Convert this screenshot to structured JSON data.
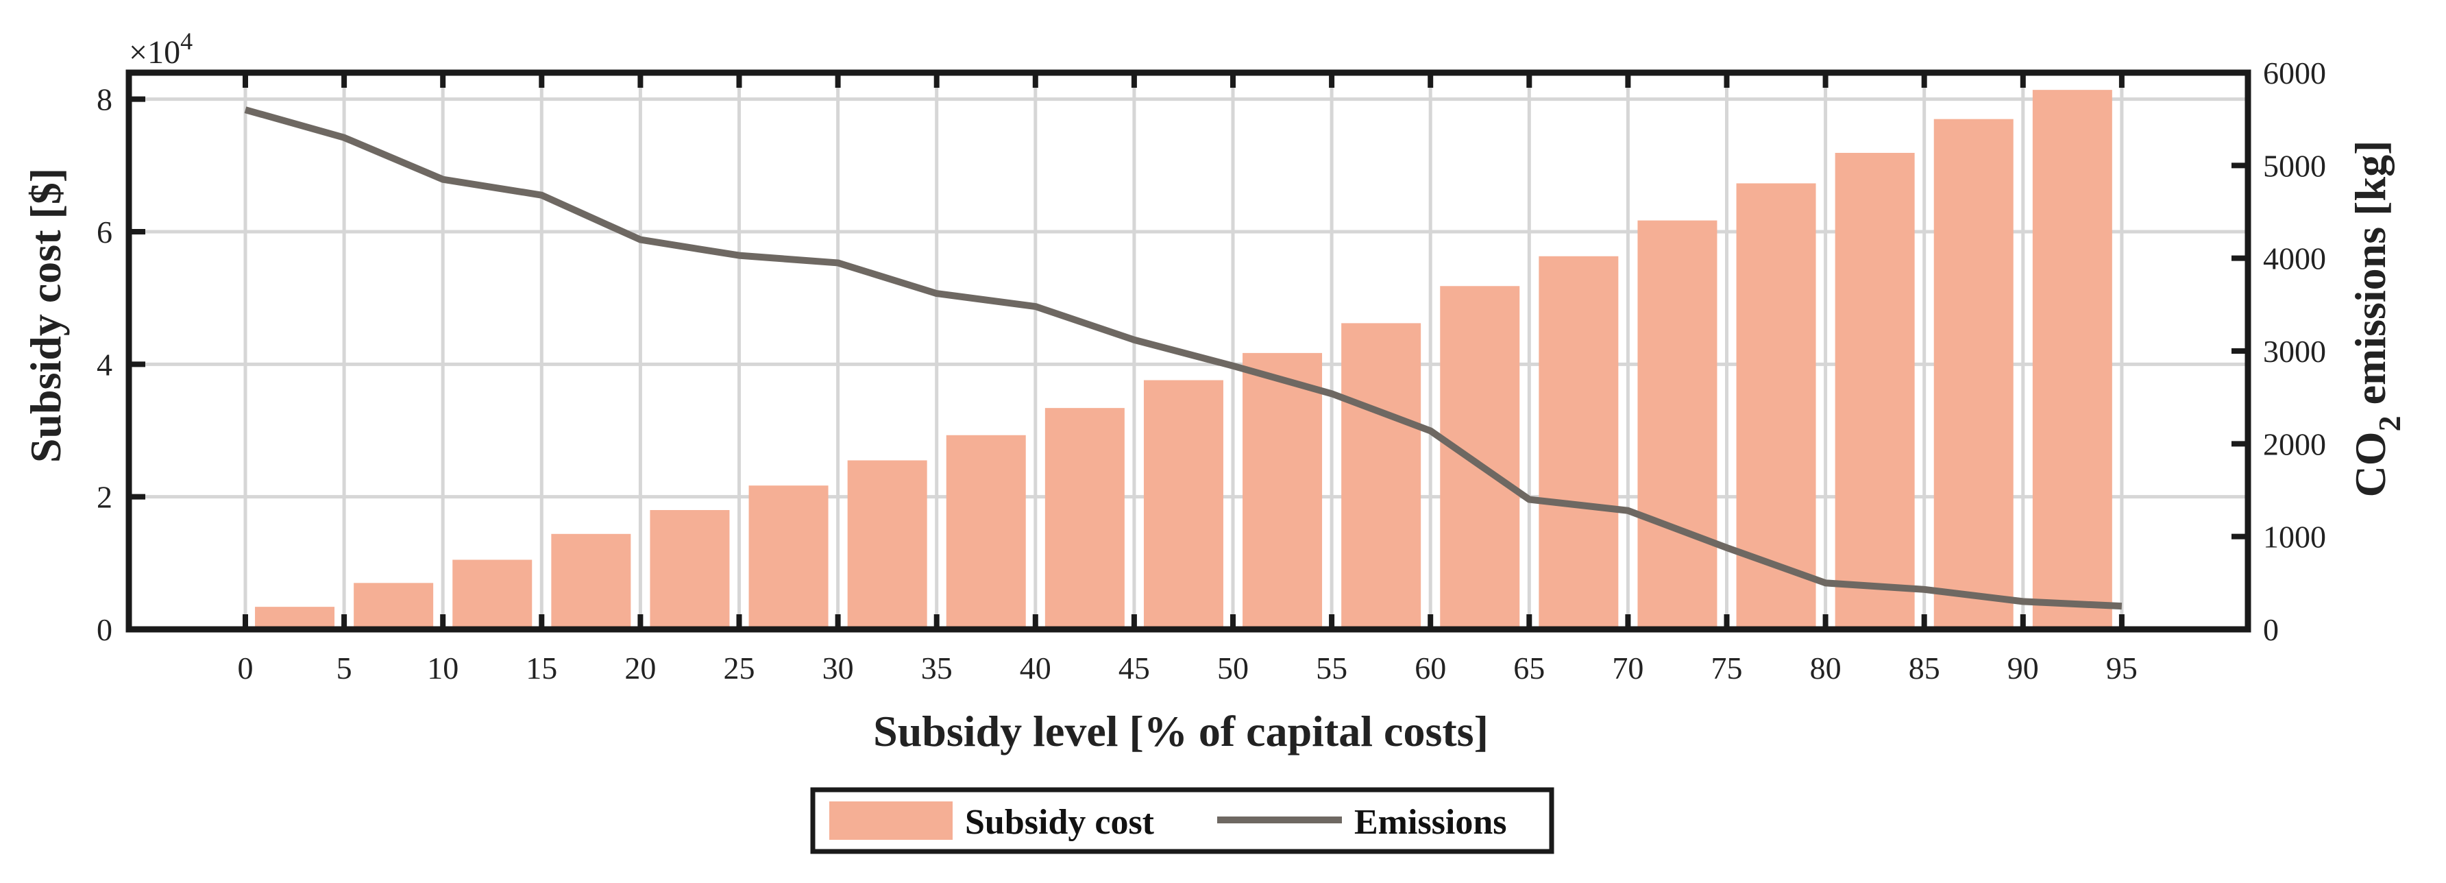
{
  "chart_data": {
    "type": "bar",
    "title": "",
    "xlabel": "Subsidy level [% of capital costs]",
    "categories": [
      "0",
      "5",
      "10",
      "15",
      "20",
      "25",
      "30",
      "35",
      "40",
      "45",
      "50",
      "55",
      "60",
      "65",
      "70",
      "75",
      "80",
      "85",
      "90",
      "95"
    ],
    "series": [
      {
        "name": "Subsidy cost",
        "axis": "left",
        "kind": "bar",
        "color": "#F5AF95",
        "values": [
          0,
          3400,
          7000,
          10500,
          14400,
          18000,
          21700,
          25500,
          29300,
          33400,
          37600,
          41700,
          46200,
          51800,
          56300,
          61700,
          67300,
          71900,
          77000,
          81400
        ]
      },
      {
        "name": "Emissions",
        "axis": "right",
        "kind": "line",
        "color": "#6E6862",
        "values": [
          5600,
          5300,
          4850,
          4680,
          4200,
          4030,
          3950,
          3620,
          3480,
          3120,
          2840,
          2540,
          2140,
          1400,
          1280,
          880,
          500,
          430,
          300,
          250
        ]
      }
    ],
    "y_left": {
      "label": "Subsidy cost [$]",
      "ylim": [
        0,
        84000
      ],
      "ticks": [
        0,
        20000,
        40000,
        60000,
        80000
      ],
      "tick_labels": [
        "0",
        "2",
        "4",
        "6",
        "8"
      ],
      "exponent_label": "×10",
      "exponent_power": "4"
    },
    "y_right": {
      "label_prefix": "CO",
      "label_subscript": "2",
      "label_suffix": " emissions [kg]",
      "ylim": [
        0,
        6000
      ],
      "ticks": [
        0,
        1000,
        2000,
        3000,
        4000,
        5000,
        6000
      ],
      "tick_labels": [
        "0",
        "1000",
        "2000",
        "3000",
        "4000",
        "5000",
        "6000"
      ]
    },
    "grid": true,
    "legend": {
      "placement": "bottom-center",
      "entries": [
        "Subsidy cost",
        "Emissions"
      ]
    }
  }
}
